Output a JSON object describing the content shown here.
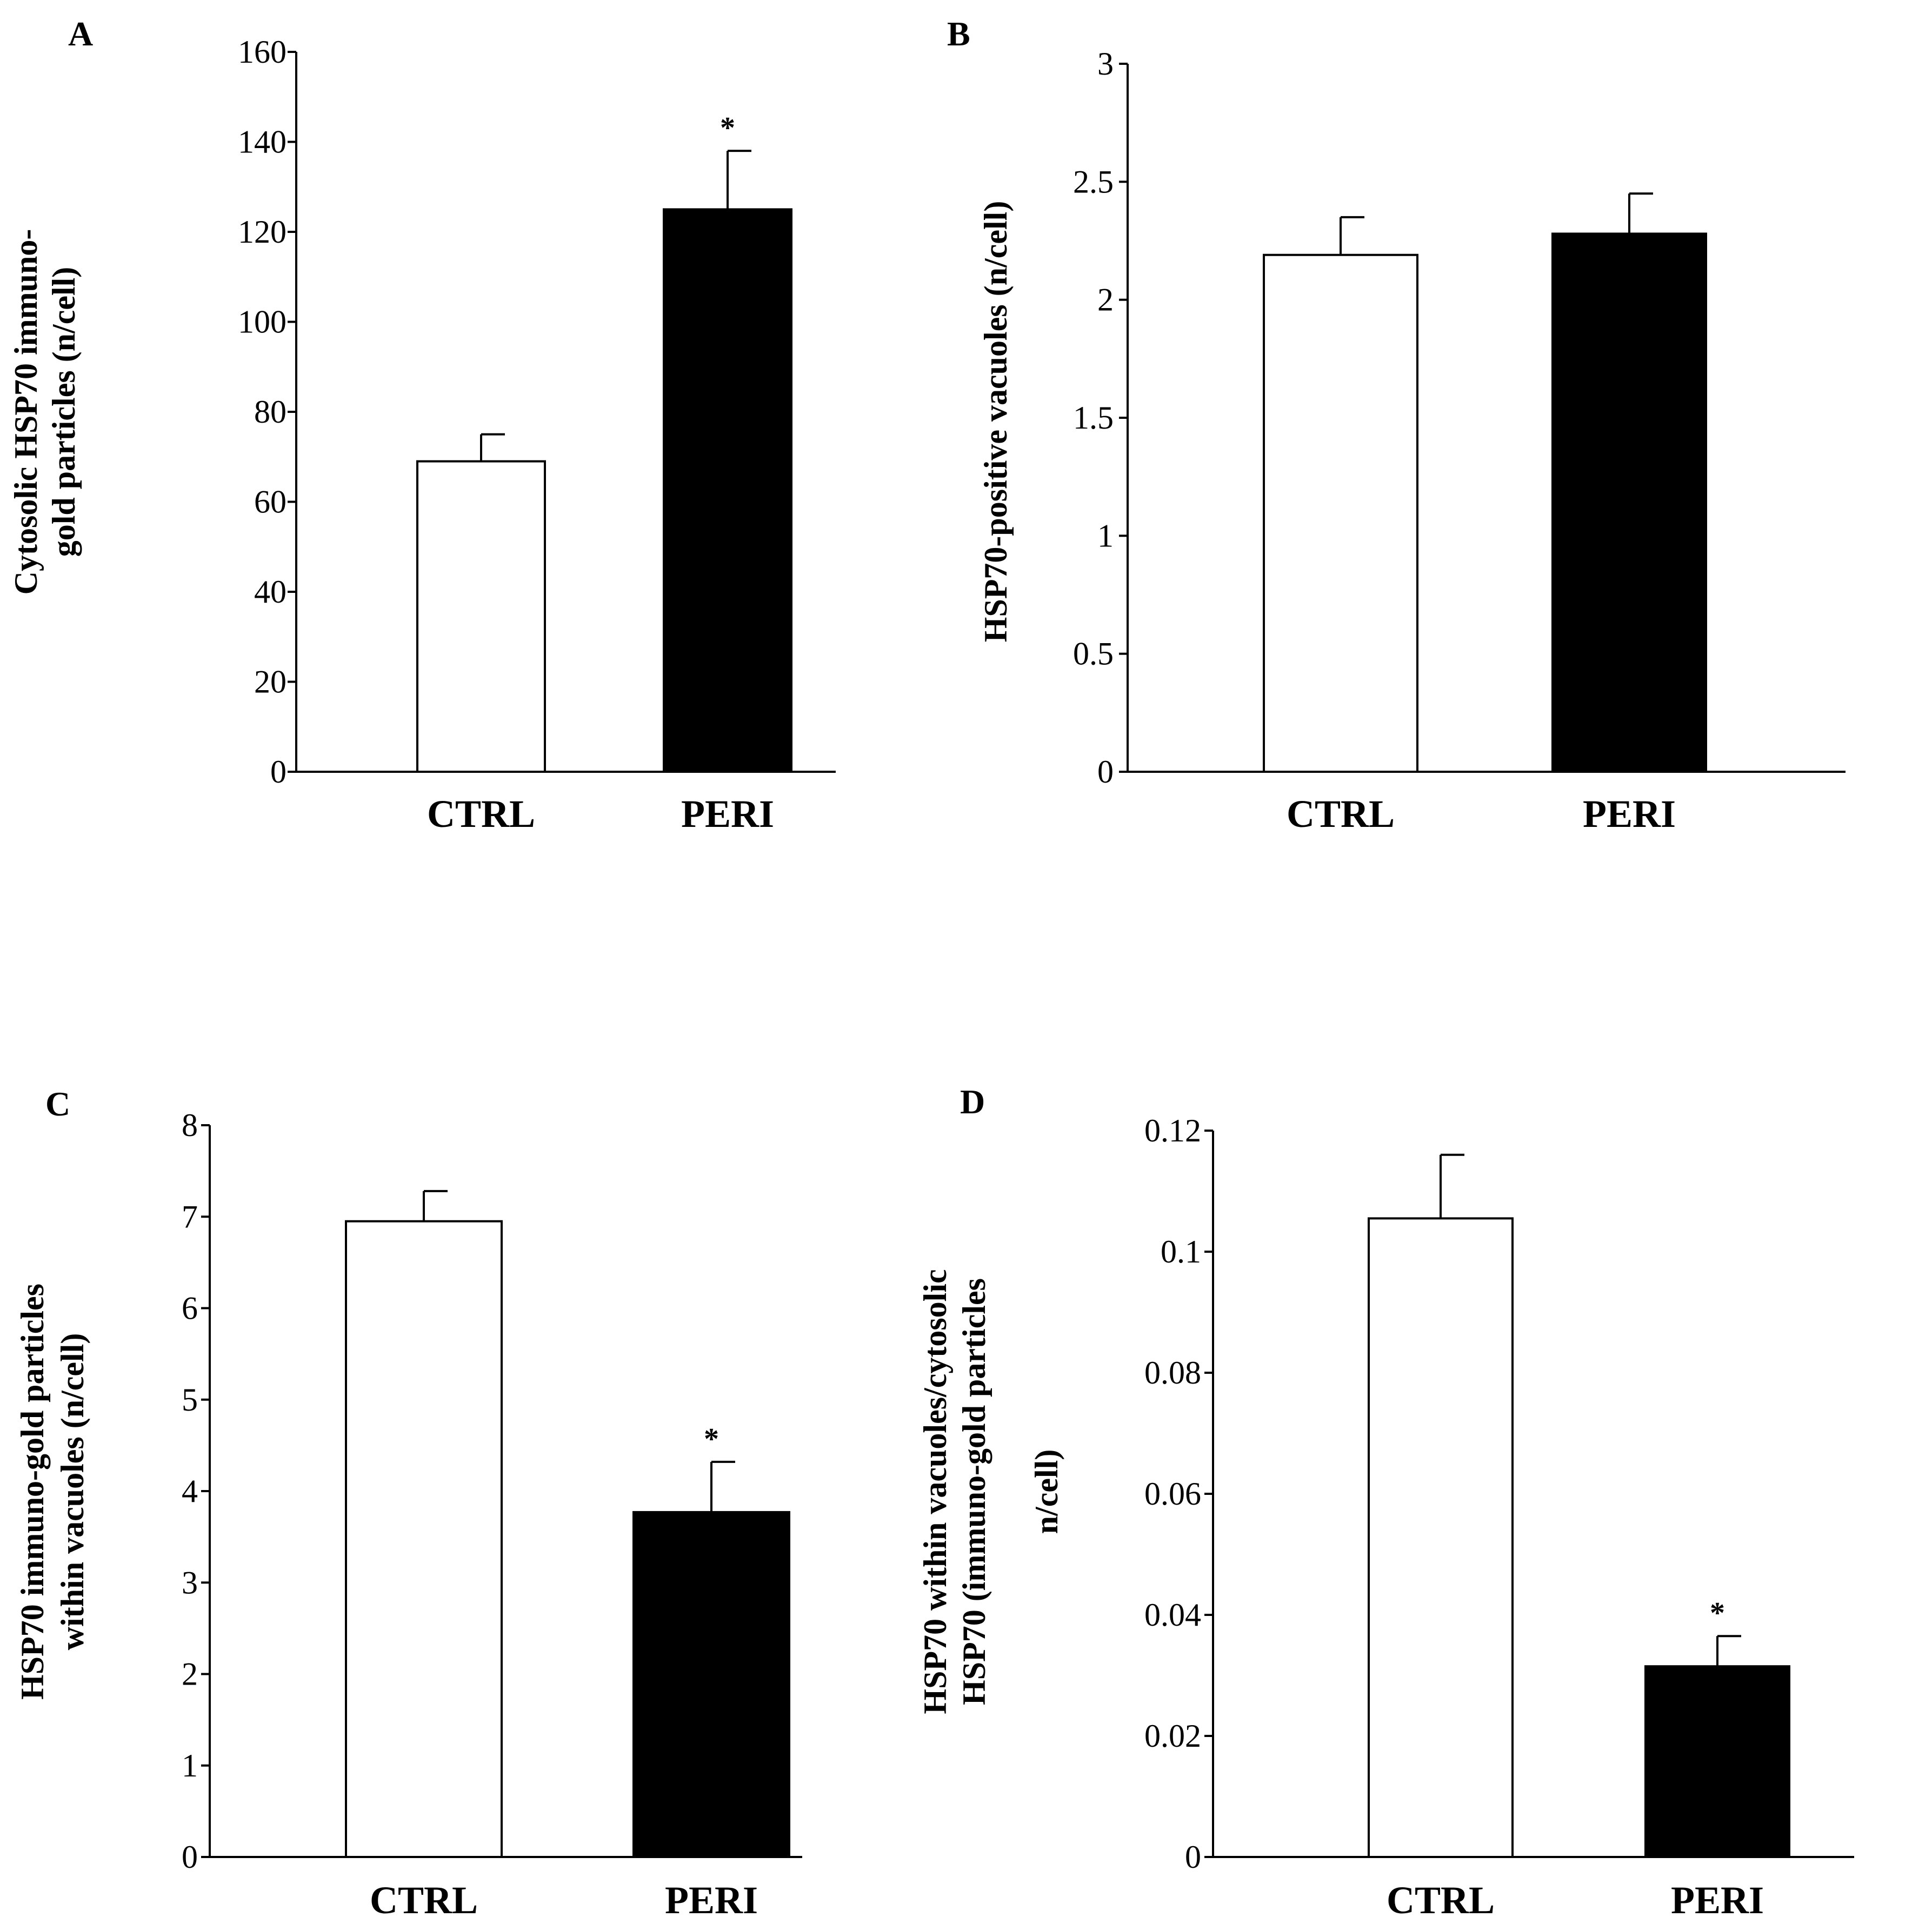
{
  "chart_data": [
    {
      "panel": "A",
      "type": "bar",
      "categories": [
        "CTRL",
        "PERI"
      ],
      "values": [
        69,
        125
      ],
      "errors": [
        6,
        13
      ],
      "bar_colors": [
        "#ffffff",
        "#000000"
      ],
      "significance": [
        "",
        "*"
      ],
      "ylabel": [
        "Cytosolic HSP70 immuno-",
        "gold particles  (n/cell)"
      ],
      "ylim": [
        0,
        160
      ],
      "yticks": [
        "0",
        "20",
        "40",
        "60",
        "80",
        "100",
        "120",
        "140",
        "160"
      ]
    },
    {
      "panel": "B",
      "type": "bar",
      "categories": [
        "CTRL",
        "PERI"
      ],
      "values": [
        2.19,
        2.28
      ],
      "errors": [
        0.16,
        0.17
      ],
      "bar_colors": [
        "#ffffff",
        "#000000"
      ],
      "significance": [
        "",
        ""
      ],
      "ylabel": [
        "HSP70-positive  vacuoles (n/cell)"
      ],
      "ylim": [
        0,
        3
      ],
      "yticks": [
        "0",
        "0.5",
        "1",
        "1.5",
        "2",
        "2.5",
        "3"
      ]
    },
    {
      "panel": "C",
      "type": "bar",
      "categories": [
        "CTRL",
        "PERI"
      ],
      "values": [
        6.95,
        3.77
      ],
      "errors": [
        0.33,
        0.55
      ],
      "bar_colors": [
        "#ffffff",
        "#000000"
      ],
      "significance": [
        "",
        "*"
      ],
      "ylabel": [
        "HSP70 immuno-gold  particles",
        "within  vacuoles (n/cell)"
      ],
      "ylim": [
        0,
        8
      ],
      "yticks": [
        "0",
        "1",
        "2",
        "3",
        "4",
        "5",
        "6",
        "7",
        "8"
      ]
    },
    {
      "panel": "D",
      "type": "bar",
      "categories": [
        "CTRL",
        "PERI"
      ],
      "values": [
        0.1055,
        0.0315
      ],
      "errors": [
        0.0105,
        0.005
      ],
      "bar_colors": [
        "#ffffff",
        "#000000"
      ],
      "significance": [
        "",
        "*"
      ],
      "ylabel": [
        "HSP70 within  vacuoles/cytosolic",
        "HSP70 (immuno-gold  particles",
        "n/cell)"
      ],
      "ylim": [
        0,
        0.12
      ],
      "yticks": [
        "0",
        "0.02",
        "0.04",
        "0.06",
        "0.08",
        "0.1",
        "0.12"
      ]
    }
  ]
}
